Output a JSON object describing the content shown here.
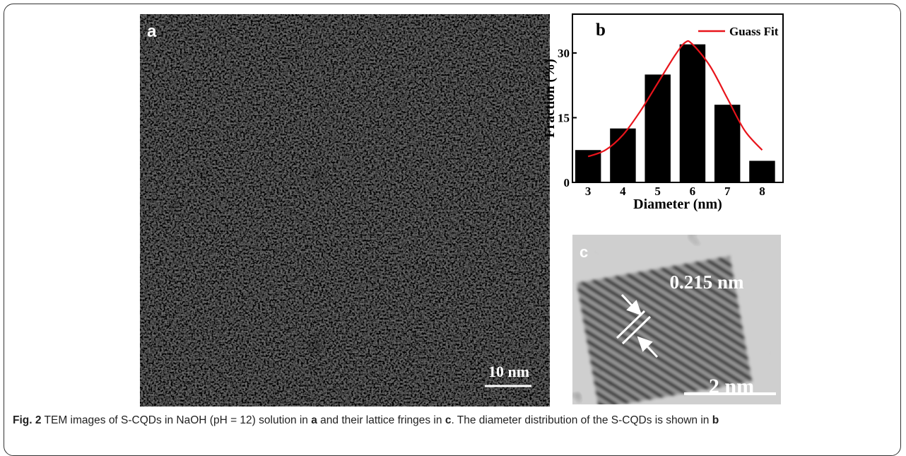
{
  "panels": {
    "a": {
      "label": "a",
      "scale_bar": "10 nm"
    },
    "c": {
      "label": "c",
      "annotation": "0.215 nm",
      "scale_bar": "2 nm"
    }
  },
  "chart_data": {
    "type": "bar",
    "panel_label": "b",
    "x": [
      3,
      4,
      5,
      6,
      7,
      8
    ],
    "values": [
      7.5,
      12.5,
      25,
      32,
      18,
      5
    ],
    "color": "#000000",
    "xlabel": "Diameter (nm)",
    "ylabel": "Fraction (%)",
    "xlim": [
      2.55,
      8.6
    ],
    "xticks": [
      3,
      4,
      5,
      6,
      7,
      8
    ],
    "ylim": [
      0,
      39
    ],
    "yticks": [
      0,
      15,
      30
    ],
    "fit": {
      "name": "Guass Fit",
      "color": "#e8141b",
      "x": [
        3,
        3.5,
        4,
        4.5,
        5,
        5.5,
        5.8,
        6,
        6.5,
        7,
        7.5,
        8
      ],
      "values": [
        6,
        7.5,
        11,
        16.5,
        23,
        29.5,
        32.5,
        32,
        27,
        19.5,
        12,
        7.5
      ]
    },
    "legend": "upper right"
  },
  "caption": {
    "label": "Fig. 2",
    "text": [
      "TEM images of S-CQDs in NaOH (pH = 12) solution in ",
      "a",
      " and their lattice fringes in ",
      "c",
      ". The diameter distribution of the S-CQDs is shown in ",
      "b"
    ]
  }
}
